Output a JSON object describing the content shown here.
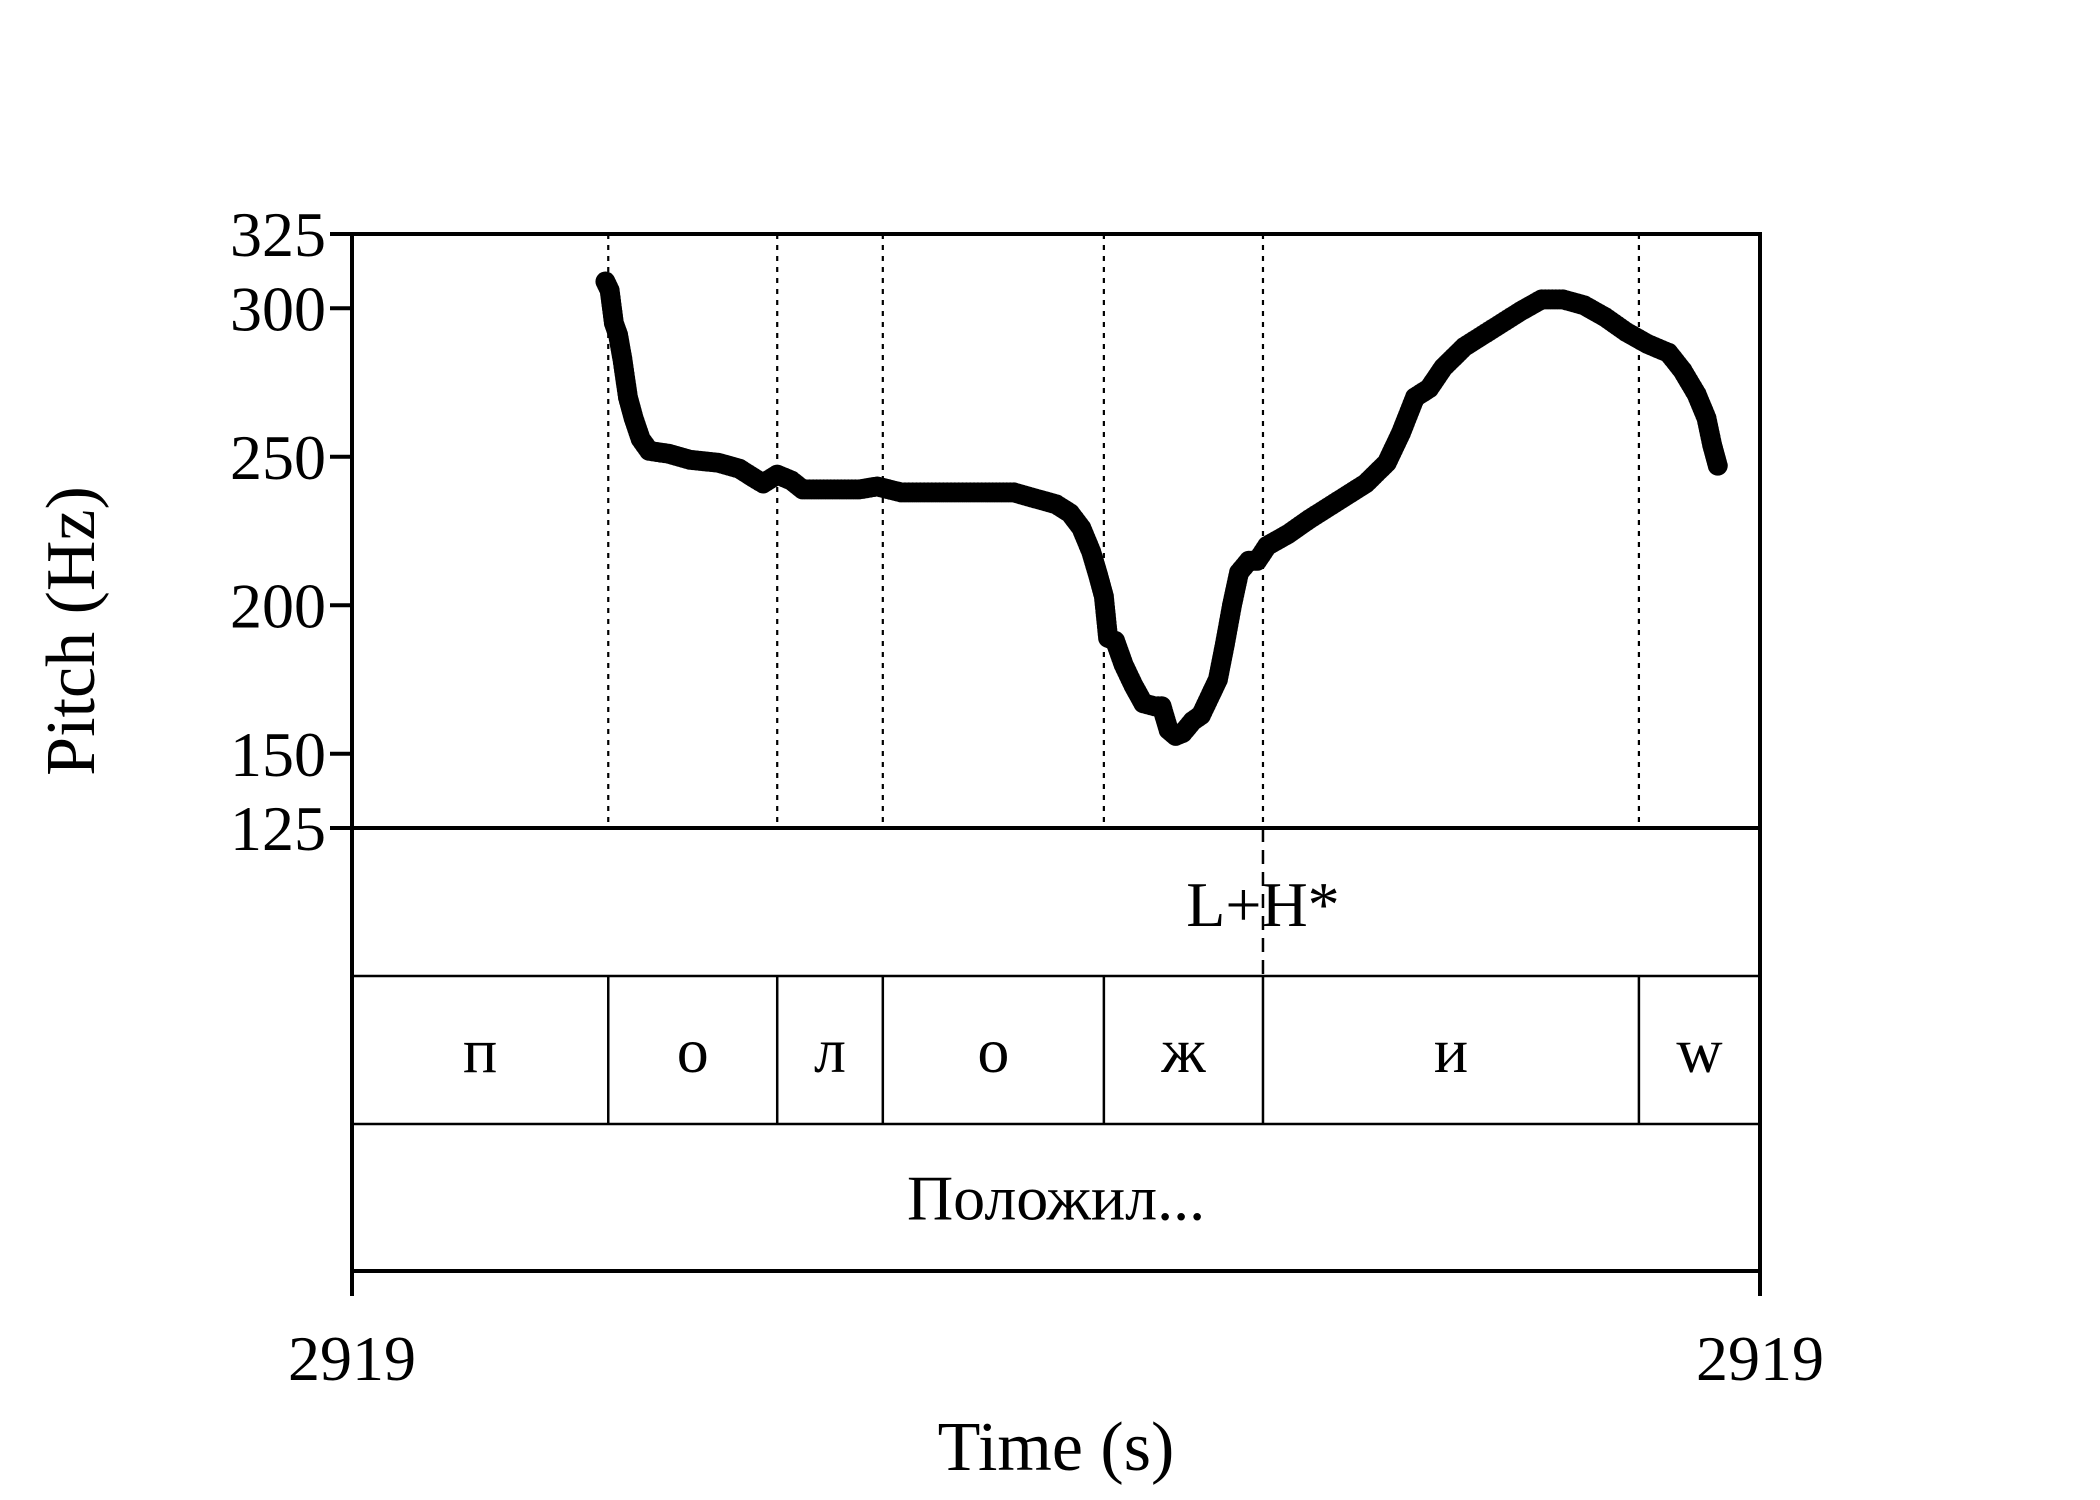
{
  "chart_data": {
    "type": "scatter",
    "ylabel": "Pitch (Hz)",
    "xlabel": "Time (s)",
    "ylim": [
      125,
      325
    ],
    "y_ticks": [
      "325",
      "300",
      "250",
      "200",
      "150",
      "125"
    ],
    "x_tick_labels": {
      "start": "2919",
      "end": "2919"
    },
    "xlim": [
      0,
      1
    ],
    "boundaries": [
      0.182,
      0.302,
      0.377,
      0.534,
      0.647,
      0.914
    ],
    "tone_tier": [
      {
        "label": "L+H*",
        "at": 0.647
      }
    ],
    "segment_tier": [
      {
        "label": "п",
        "start": 0.0,
        "end": 0.182
      },
      {
        "label": "о",
        "start": 0.182,
        "end": 0.302
      },
      {
        "label": "л",
        "start": 0.302,
        "end": 0.377
      },
      {
        "label": "о",
        "start": 0.377,
        "end": 0.534
      },
      {
        "label": "ж",
        "start": 0.534,
        "end": 0.647
      },
      {
        "label": "и",
        "start": 0.647,
        "end": 0.914
      },
      {
        "label": "w",
        "start": 0.914,
        "end": 1.0
      }
    ],
    "word_tier": [
      {
        "label": "Положил...",
        "start": 0.0,
        "end": 1.0
      }
    ],
    "pitch_keypoints": [
      [
        0.18,
        309
      ],
      [
        0.183,
        306
      ],
      [
        0.186,
        295
      ],
      [
        0.189,
        291
      ],
      [
        0.192,
        283
      ],
      [
        0.196,
        270
      ],
      [
        0.2,
        263
      ],
      [
        0.205,
        256
      ],
      [
        0.211,
        252
      ],
      [
        0.225,
        251
      ],
      [
        0.24,
        249
      ],
      [
        0.26,
        248
      ],
      [
        0.275,
        246
      ],
      [
        0.285,
        243
      ],
      [
        0.292,
        241
      ],
      [
        0.302,
        244
      ],
      [
        0.312,
        242
      ],
      [
        0.32,
        239
      ],
      [
        0.34,
        239
      ],
      [
        0.36,
        239
      ],
      [
        0.373,
        240
      ],
      [
        0.39,
        238
      ],
      [
        0.42,
        238
      ],
      [
        0.45,
        238
      ],
      [
        0.47,
        238
      ],
      [
        0.485,
        236
      ],
      [
        0.5,
        234
      ],
      [
        0.51,
        231
      ],
      [
        0.518,
        226
      ],
      [
        0.525,
        218
      ],
      [
        0.53,
        210
      ],
      [
        0.534,
        203
      ],
      [
        0.537,
        189
      ],
      [
        0.542,
        188
      ],
      [
        0.548,
        180
      ],
      [
        0.555,
        173
      ],
      [
        0.562,
        167
      ],
      [
        0.57,
        166
      ],
      [
        0.575,
        166
      ],
      [
        0.58,
        158
      ],
      [
        0.585,
        156
      ],
      [
        0.59,
        157
      ],
      [
        0.597,
        161
      ],
      [
        0.603,
        163
      ],
      [
        0.61,
        170
      ],
      [
        0.615,
        175
      ],
      [
        0.62,
        187
      ],
      [
        0.625,
        200
      ],
      [
        0.63,
        211
      ],
      [
        0.637,
        215
      ],
      [
        0.643,
        215
      ],
      [
        0.65,
        220
      ],
      [
        0.665,
        224
      ],
      [
        0.68,
        229
      ],
      [
        0.7,
        235
      ],
      [
        0.72,
        241
      ],
      [
        0.735,
        248
      ],
      [
        0.745,
        258
      ],
      [
        0.755,
        270
      ],
      [
        0.765,
        273
      ],
      [
        0.775,
        280
      ],
      [
        0.79,
        287
      ],
      [
        0.81,
        293
      ],
      [
        0.83,
        299
      ],
      [
        0.845,
        303
      ],
      [
        0.86,
        303
      ],
      [
        0.875,
        301
      ],
      [
        0.89,
        297
      ],
      [
        0.905,
        292
      ],
      [
        0.92,
        288
      ],
      [
        0.935,
        285
      ],
      [
        0.945,
        279
      ],
      [
        0.955,
        271
      ],
      [
        0.962,
        263
      ],
      [
        0.966,
        254
      ],
      [
        0.97,
        247
      ]
    ]
  }
}
